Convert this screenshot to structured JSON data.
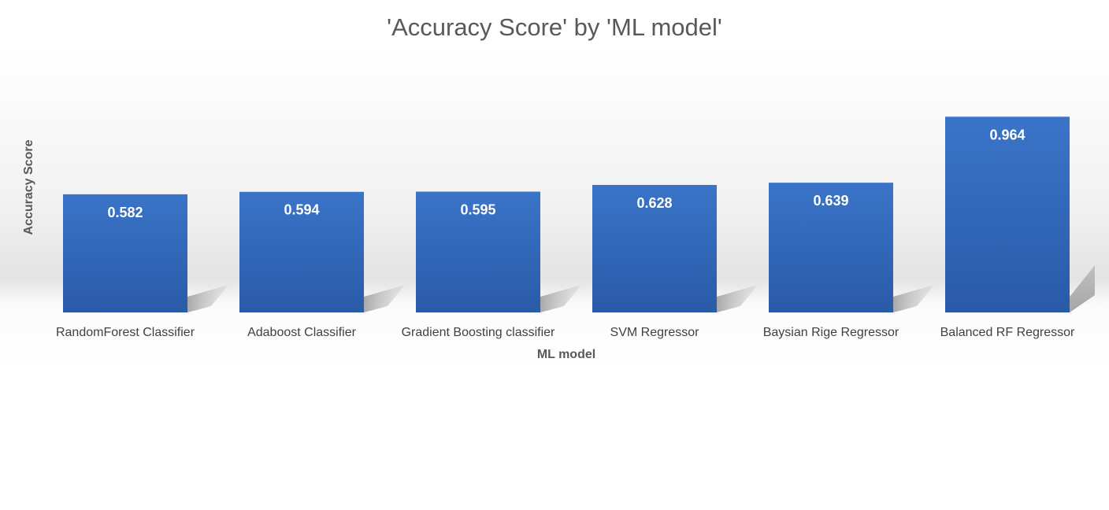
{
  "chart_data": {
    "type": "bar",
    "title": "'Accuracy Score' by 'ML model'",
    "xlabel": "ML model",
    "ylabel": "Accuracy Score",
    "categories": [
      "RandomForest Classifier",
      "Adaboost Classifier",
      "Gradient Boosting classifier",
      "SVM Regressor",
      "Baysian Rige Regressor",
      "Balanced RF Regressor"
    ],
    "values": [
      0.582,
      0.594,
      0.595,
      0.628,
      0.639,
      0.964
    ],
    "data_labels": [
      "0.582",
      "0.594",
      "0.595",
      "0.628",
      "0.639",
      "0.964"
    ],
    "ylim": [
      0,
      1.0
    ],
    "grid": false,
    "legend": "none",
    "colors": {
      "bar_top": "#3a74c8",
      "bar_bottom": "#2a5aa8",
      "title": "#595959",
      "axis_title": "#595959",
      "tick_label": "#404040",
      "data_label": "#ffffff"
    }
  }
}
